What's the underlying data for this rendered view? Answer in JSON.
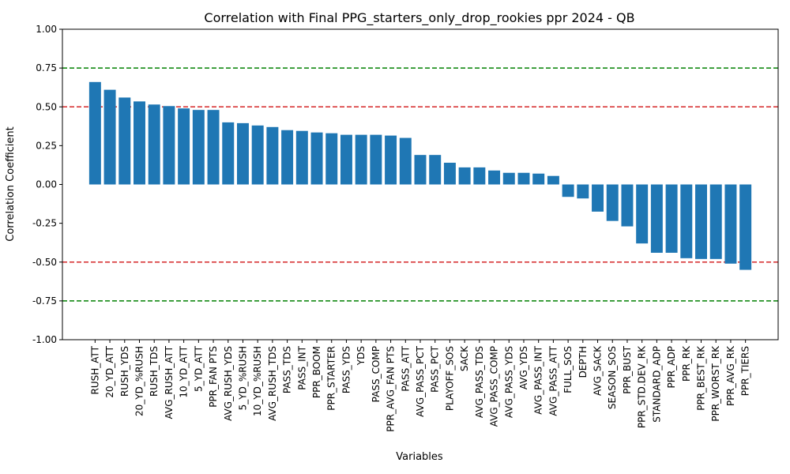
{
  "chart_data": {
    "type": "bar",
    "title": "Correlation with Final PPG_starters_only_drop_rookies ppr 2024 - QB",
    "xlabel": "Variables",
    "ylabel": "Correlation Coefficient",
    "ylim": [
      -1.0,
      1.0
    ],
    "yticks": [
      "-1.00",
      "-0.75",
      "-0.50",
      "-0.25",
      "0.00",
      "0.25",
      "0.50",
      "0.75",
      "1.00"
    ],
    "grid": false,
    "bar_color": "#1f77b4",
    "reference_lines": [
      {
        "y": 0.75,
        "color": "#008000"
      },
      {
        "y": 0.5,
        "color": "#d62728"
      },
      {
        "y": -0.5,
        "color": "#d62728"
      },
      {
        "y": -0.75,
        "color": "#008000"
      }
    ],
    "categories": [
      "RUSH_ATT",
      "20_YD_ATT",
      "RUSH_YDS",
      "20_YD_%RUSH",
      "RUSH_TDS",
      "AVG_RUSH_ATT",
      "10_YD_ATT",
      "5_YD_ATT",
      "PPR_FAN PTS",
      "AVG_RUSH_YDS",
      "5_YD_%RUSH",
      "10_YD_%RUSH",
      "AVG_RUSH_TDS",
      "PASS_TDS",
      "PASS_INT",
      "PPR_BOOM",
      "PPR_STARTER",
      "PASS_YDS",
      "YDS",
      "PASS_COMP",
      "PPR_AVG_FAN PTS",
      "PASS_ATT",
      "AVG_PASS_PCT",
      "PASS_PCT",
      "PLAYOFF_SOS",
      "SACK",
      "AVG_PASS_TDS",
      "AVG_PASS_COMP",
      "AVG_PASS_YDS",
      "AVG_YDS",
      "AVG_PASS_INT",
      "AVG_PASS_ATT",
      "FULL_SOS",
      "DEPTH",
      "AVG_SACK",
      "SEASON_SOS",
      "PPR_BUST",
      "PPR_STD.DEV_RK",
      "STANDARD_ADP",
      "PPR_ADP",
      "PPR_RK",
      "PPR_BEST_RK",
      "PPR_WORST_RK",
      "PPR_AVG_RK",
      "PPR_TIERS"
    ],
    "values": [
      0.66,
      0.61,
      0.56,
      0.535,
      0.515,
      0.505,
      0.49,
      0.48,
      0.48,
      0.4,
      0.395,
      0.38,
      0.37,
      0.35,
      0.345,
      0.335,
      0.33,
      0.32,
      0.32,
      0.32,
      0.315,
      0.3,
      0.19,
      0.19,
      0.14,
      0.11,
      0.11,
      0.09,
      0.075,
      0.075,
      0.07,
      0.055,
      -0.08,
      -0.09,
      -0.175,
      -0.235,
      -0.27,
      -0.38,
      -0.44,
      -0.44,
      -0.475,
      -0.48,
      -0.48,
      -0.51,
      -0.55
    ]
  }
}
